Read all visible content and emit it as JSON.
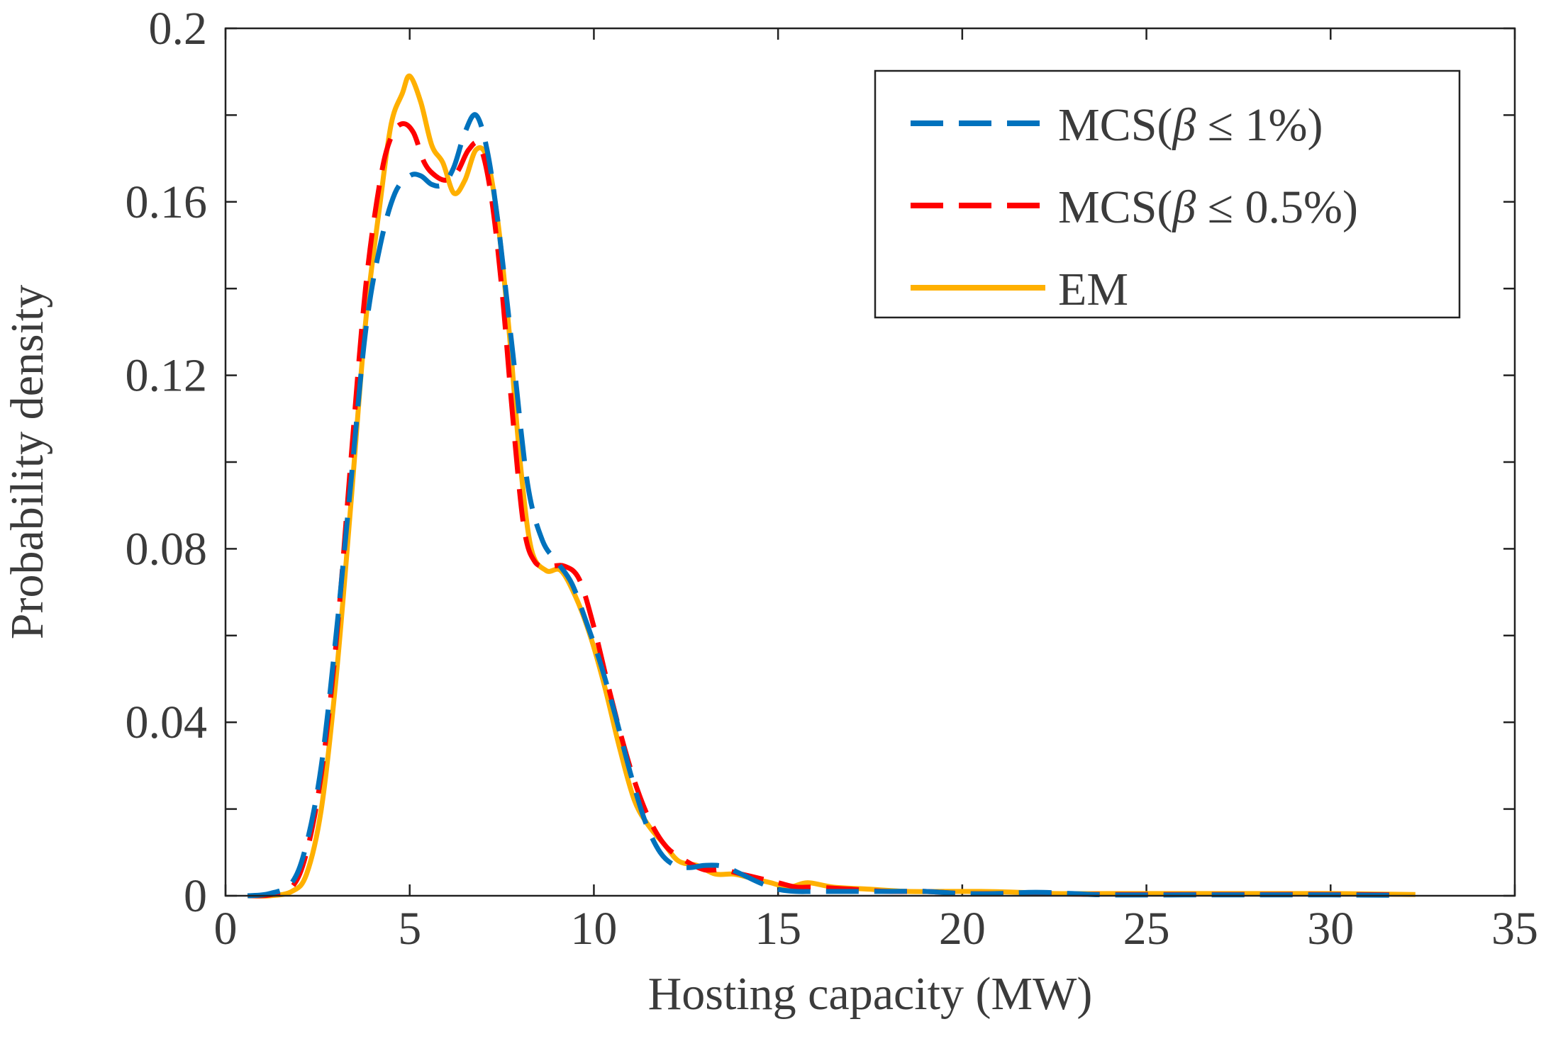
{
  "chart_data": {
    "type": "line",
    "title": "",
    "xlabel": "Hosting capacity (MW)",
    "ylabel": "Probability density",
    "xlim": [
      0,
      35
    ],
    "ylim": [
      0,
      0.2
    ],
    "x_ticks": [
      0,
      5,
      10,
      15,
      20,
      25,
      30,
      35
    ],
    "x_tick_labels": [
      "0",
      "5",
      "10",
      "15",
      "20",
      "25",
      "30",
      "35"
    ],
    "y_ticks": [
      0,
      0.04,
      0.08,
      0.12,
      0.16,
      0.2
    ],
    "y_tick_labels": [
      "0",
      "0.04",
      "0.08",
      "0.12",
      "0.16",
      "0.2"
    ],
    "legend_position": "top-right",
    "series": [
      {
        "name": "MCS(β ≤ 1%)",
        "legend_prefix": "MCS(",
        "legend_symbol": "β",
        "legend_suffix": " ≤ 1%)",
        "color": "#0072BD",
        "style": "dashed",
        "x": [
          0.6,
          1.2,
          1.8,
          2.2,
          2.6,
          3.0,
          3.4,
          3.8,
          4.2,
          4.6,
          5.0,
          5.3,
          5.6,
          5.9,
          6.2,
          6.5,
          6.8,
          7.1,
          7.4,
          7.8,
          8.2,
          8.6,
          9.0,
          9.4,
          9.8,
          10.2,
          10.6,
          11.0,
          11.4,
          11.8,
          12.2,
          12.6,
          13.0,
          13.5,
          14.0,
          14.5,
          15.0,
          15.5,
          16.0,
          17.0,
          18.0,
          19.0,
          20.0,
          21.0,
          22.0,
          23.0,
          24.0,
          26.0,
          28.0,
          30.0,
          32.0
        ],
        "y": [
          0.0,
          0.0005,
          0.003,
          0.012,
          0.03,
          0.06,
          0.095,
          0.13,
          0.15,
          0.162,
          0.166,
          0.166,
          0.164,
          0.164,
          0.168,
          0.176,
          0.18,
          0.172,
          0.155,
          0.125,
          0.095,
          0.082,
          0.077,
          0.072,
          0.063,
          0.053,
          0.041,
          0.028,
          0.017,
          0.01,
          0.007,
          0.0065,
          0.007,
          0.0068,
          0.005,
          0.003,
          0.0015,
          0.001,
          0.001,
          0.001,
          0.001,
          0.001,
          0.0005,
          0.0005,
          0.0008,
          0.0005,
          0.0002,
          0.0002,
          0.0002,
          0.0002,
          0.0001
        ]
      },
      {
        "name": "MCS(β ≤ 0.5%)",
        "legend_prefix": "MCS(",
        "legend_symbol": "β",
        "legend_suffix": " ≤ 0.5%)",
        "color": "#FF0000",
        "style": "dashed",
        "x": [
          0.6,
          1.2,
          1.8,
          2.2,
          2.6,
          3.0,
          3.4,
          3.8,
          4.2,
          4.5,
          4.8,
          5.1,
          5.4,
          5.7,
          6.0,
          6.3,
          6.6,
          6.9,
          7.2,
          7.5,
          7.8,
          8.1,
          8.4,
          8.8,
          9.2,
          9.6,
          10.0,
          10.4,
          10.8,
          11.2,
          11.6,
          12.0,
          12.5,
          13.0,
          13.5,
          14.0,
          14.5,
          15.0,
          15.5,
          16.0,
          17.0,
          18.0,
          19.0,
          20.0,
          21.0,
          22.0,
          23.0,
          24.0,
          26.0,
          28.0,
          30.0,
          32.0
        ],
        "y": [
          0.0,
          0.0002,
          0.002,
          0.01,
          0.028,
          0.058,
          0.1,
          0.14,
          0.165,
          0.175,
          0.178,
          0.176,
          0.169,
          0.166,
          0.165,
          0.167,
          0.172,
          0.173,
          0.162,
          0.14,
          0.11,
          0.085,
          0.077,
          0.076,
          0.076,
          0.073,
          0.062,
          0.048,
          0.035,
          0.024,
          0.016,
          0.011,
          0.008,
          0.006,
          0.006,
          0.005,
          0.004,
          0.003,
          0.002,
          0.002,
          0.0015,
          0.001,
          0.001,
          0.0005,
          0.0005,
          0.0005,
          0.0004,
          0.0003,
          0.0003,
          0.0003,
          0.0003,
          0.0002
        ]
      },
      {
        "name": "EM",
        "legend_prefix": "EM",
        "legend_symbol": "",
        "legend_suffix": "",
        "color": "#FFB000",
        "style": "solid",
        "x": [
          0.6,
          1.2,
          1.8,
          2.2,
          2.6,
          3.0,
          3.4,
          3.8,
          4.2,
          4.5,
          4.8,
          5.0,
          5.3,
          5.6,
          5.9,
          6.2,
          6.5,
          6.8,
          7.1,
          7.4,
          7.7,
          8.0,
          8.3,
          8.7,
          9.1,
          9.5,
          9.9,
          10.3,
          10.7,
          11.1,
          11.5,
          11.9,
          12.3,
          12.8,
          13.3,
          13.8,
          14.3,
          14.8,
          15.3,
          15.8,
          16.5,
          17.5,
          18.5,
          19.5,
          20.5,
          21.5,
          22.5,
          24.0,
          26.0,
          28.0,
          30.0,
          32.3
        ],
        "y": [
          0.0,
          0.0,
          0.001,
          0.005,
          0.02,
          0.05,
          0.09,
          0.132,
          0.16,
          0.178,
          0.185,
          0.189,
          0.183,
          0.173,
          0.169,
          0.162,
          0.165,
          0.172,
          0.17,
          0.155,
          0.13,
          0.1,
          0.08,
          0.075,
          0.075,
          0.069,
          0.06,
          0.048,
          0.034,
          0.022,
          0.016,
          0.012,
          0.008,
          0.007,
          0.005,
          0.005,
          0.004,
          0.003,
          0.002,
          0.003,
          0.002,
          0.0015,
          0.001,
          0.001,
          0.001,
          0.0008,
          0.0005,
          0.0005,
          0.0005,
          0.0005,
          0.0005,
          0.0003
        ]
      }
    ]
  }
}
